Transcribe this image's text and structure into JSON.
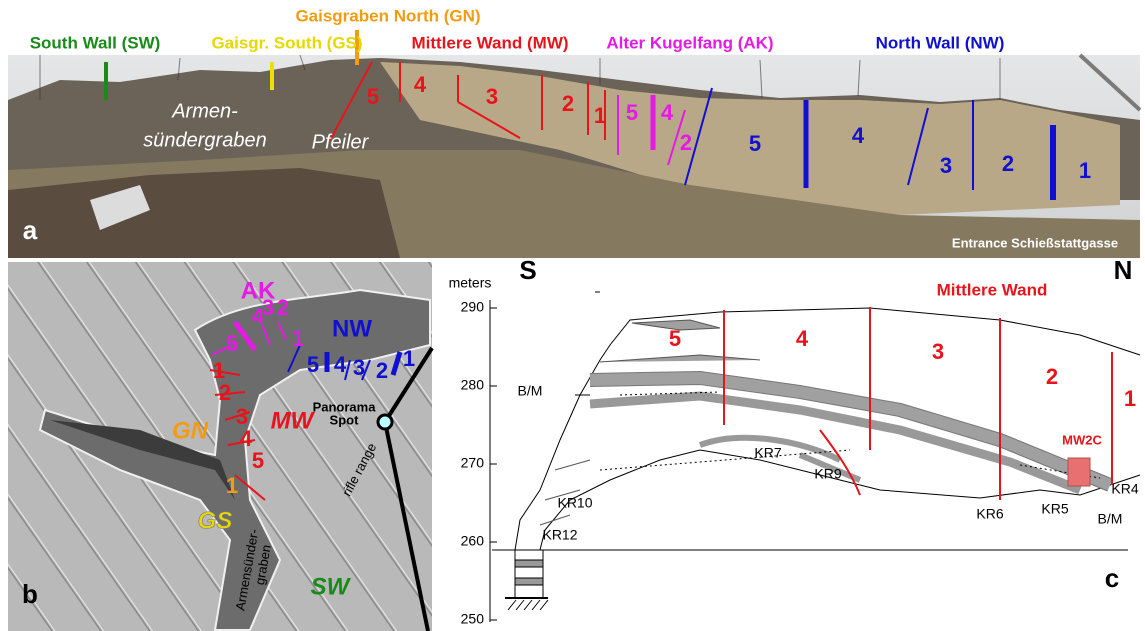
{
  "panel_a": {
    "panel_label": "a",
    "top_labels": {
      "south_wall": "South Wall (SW)",
      "gaisgraben_south": "Gaisgr. South (GS)",
      "gaisgraben_north": "Gaisgraben North (GN)",
      "mittlere_wand": "Mittlere Wand (MW)",
      "alter_kugelfang": "Alter Kugelfang (AK)",
      "north_wall": "North Wall (NW)"
    },
    "photo_labels": {
      "armen": "Armen-",
      "suendergraben": "sündergraben",
      "pfeiler": "Pfeiler",
      "entrance": "Entrance Schießstattgasse"
    },
    "mw_sections": [
      "5",
      "4",
      "3",
      "2",
      "1"
    ],
    "ak_sections": [
      "5",
      "4",
      "2"
    ],
    "nw_sections": [
      "5",
      "4",
      "3",
      "2",
      "1"
    ]
  },
  "panel_b": {
    "panel_label": "b",
    "ak": "AK",
    "nw": "NW",
    "mw": "MW",
    "gn": "GN",
    "gs": "GS",
    "sw": "SW",
    "ak_numbers": [
      "5",
      "4",
      "3",
      "2",
      "1"
    ],
    "nw_numbers": [
      "5",
      "4",
      "3",
      "2",
      "1"
    ],
    "mw_numbers": [
      "1",
      "2",
      "3",
      "4",
      "5"
    ],
    "gn_number": "1",
    "panorama": [
      "Panorama",
      "Spot"
    ],
    "rifle_range": "rifle range",
    "armensuender": [
      "Armensünder-",
      "graben"
    ]
  },
  "panel_c": {
    "panel_label": "c",
    "south": "S",
    "north": "N",
    "axis_title": "meters",
    "yticks": [
      290,
      280,
      270,
      260,
      250
    ],
    "title": "Mittlere Wand",
    "sections": [
      "5",
      "4",
      "3",
      "2",
      "1"
    ],
    "units": [
      "B/M",
      "KR7",
      "KR9",
      "KR10",
      "KR12",
      "KR6",
      "KR5",
      "KR4",
      "B/M"
    ],
    "sample": "MW2C"
  }
}
